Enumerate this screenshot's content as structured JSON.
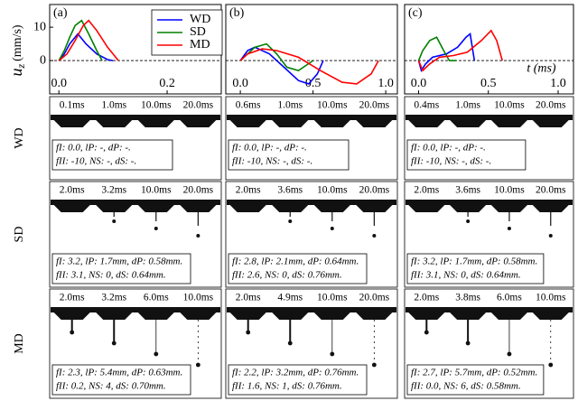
{
  "chart_data": [
    {
      "type": "line",
      "panel_label": "(a)",
      "y_label": "u",
      "y_label_sub": "z",
      "y_label_unit": "(mm/s)",
      "xlim": [
        -0.017,
        0.3
      ],
      "xticks": [
        {
          "value": 0,
          "label": "0.0"
        },
        {
          "value": 0.2,
          "label": "0.2"
        }
      ],
      "ylim": [
        -10,
        16.8
      ],
      "yticks": [
        0,
        10
      ],
      "series": [
        {
          "name": "WD",
          "color": "#0000ff",
          "x": [
            0,
            0.01,
            0.02,
            0.035,
            0.05,
            0.07,
            0.09,
            0.1
          ],
          "values": [
            0,
            2,
            5,
            8,
            5,
            2,
            0.3,
            0
          ]
        },
        {
          "name": "SD",
          "color": "#008000",
          "x": [
            0,
            0.01,
            0.02,
            0.03,
            0.042,
            0.055,
            0.07,
            0.08
          ],
          "values": [
            0,
            3,
            7,
            10.5,
            12,
            8,
            3,
            0
          ]
        },
        {
          "name": "MD",
          "color": "#ff0000",
          "x": [
            0,
            0.015,
            0.03,
            0.045,
            0.055,
            0.07,
            0.09,
            0.11
          ],
          "values": [
            0,
            2,
            6,
            10.5,
            12,
            9,
            4,
            0
          ]
        }
      ]
    },
    {
      "type": "line",
      "panel_label": "(b)",
      "xlim": [
        -0.1,
        1.08
      ],
      "xticks": [
        {
          "value": 0,
          "label": "0.0"
        },
        0.5,
        {
          "value": 1,
          "label": "1.0"
        }
      ],
      "ylim": [
        -10,
        16.8
      ],
      "series": [
        {
          "name": "WD",
          "color": "#0000ff",
          "x": [
            0,
            0.05,
            0.1,
            0.2,
            0.3,
            0.4,
            0.47,
            0.53,
            0.57
          ],
          "values": [
            0,
            3,
            4,
            2,
            -2,
            -6,
            -7,
            -4,
            0
          ]
        },
        {
          "name": "SD",
          "color": "#008000",
          "x": [
            0,
            0.05,
            0.1,
            0.18,
            0.25,
            0.32,
            0.4,
            0.5
          ],
          "values": [
            0,
            2,
            4,
            5,
            2,
            -2,
            -3,
            0
          ]
        },
        {
          "name": "MD",
          "color": "#ff0000",
          "x": [
            0,
            0.05,
            0.15,
            0.25,
            0.4,
            0.55,
            0.7,
            0.8,
            0.9,
            0.95
          ],
          "values": [
            0,
            2,
            3.5,
            3,
            1,
            -3,
            -6.5,
            -7,
            -4,
            0
          ]
        }
      ]
    },
    {
      "type": "line",
      "panel_label": "(c)",
      "x_label": "t (ms)",
      "xlim": [
        -0.1,
        1.11
      ],
      "xticks": [
        {
          "value": 0,
          "label": "0.0"
        },
        0.5,
        {
          "value": 1,
          "label": "1.0"
        }
      ],
      "ylim": [
        -10,
        16.8
      ],
      "series": [
        {
          "name": "WD",
          "color": "#0000ff",
          "x": [
            0,
            0.02,
            0.05,
            0.1,
            0.2,
            0.28,
            0.34,
            0.37,
            0.4
          ],
          "values": [
            0,
            -3,
            -1,
            1,
            2,
            4,
            7,
            8,
            0
          ]
        },
        {
          "name": "SD",
          "color": "#008000",
          "x": [
            0,
            0.03,
            0.08,
            0.13,
            0.18,
            0.22,
            0.27
          ],
          "values": [
            0,
            3,
            6,
            7,
            3,
            0,
            0
          ]
        },
        {
          "name": "MD",
          "color": "#ff0000",
          "x": [
            0,
            0.03,
            0.08,
            0.15,
            0.25,
            0.35,
            0.45,
            0.52,
            0.56,
            0.6
          ],
          "values": [
            0,
            -3,
            -1,
            1,
            1.5,
            2.5,
            6,
            9,
            6,
            0
          ]
        }
      ]
    }
  ],
  "image_rows": [
    {
      "label": "WD",
      "panels": [
        {
          "times": [
            "0.1ms",
            "1.0ms",
            "10.0ms",
            "20.0ms"
          ],
          "info": [
            "fI: 0.0, lP: -, dP: -.",
            "fII: -10, NS: -, dS: -."
          ]
        },
        {
          "times": [
            "0.6ms",
            "1.0ms",
            "10.0ms",
            "20.0ms"
          ],
          "info": [
            "fI: 0.0, lP: -, dP: -.",
            "fII: -10, NS: -, dS: -."
          ]
        },
        {
          "times": [
            "0.4ms",
            "1.0ms",
            "10.0ms",
            "20.0ms"
          ],
          "info": [
            "fI: 0.0, lP: -, dP: -.",
            "fII: -10, NS: -, dS: -."
          ]
        }
      ]
    },
    {
      "label": "SD",
      "panels": [
        {
          "times": [
            "2.0ms",
            "3.2ms",
            "10.0ms",
            "20.0ms"
          ],
          "info": [
            "fI: 3.2, lP: 1.7mm, dP: 0.58mm.",
            "fII: 3.1, NS: 0, dS: 0.64mm."
          ]
        },
        {
          "times": [
            "2.0ms",
            "3.6ms",
            "10.0ms",
            "20.0ms"
          ],
          "info": [
            "fI: 2.8, lP: 2.1mm, dP: 0.64mm.",
            "fII: 2.6, NS: 0, dS: 0.76mm."
          ]
        },
        {
          "times": [
            "2.0ms",
            "3.6ms",
            "10.0ms",
            "20.0ms"
          ],
          "info": [
            "fI: 3.2, lP: 1.7mm, dP: 0.58mm.",
            "fII: 3.1, NS: 0, dS: 0.64mm."
          ]
        }
      ]
    },
    {
      "label": "MD",
      "panels": [
        {
          "times": [
            "2.0ms",
            "3.2ms",
            "6.0ms",
            "10.0ms"
          ],
          "info": [
            "fI: 2.3, lP: 5.4mm, dP: 0.63mm.",
            "fII: 0.2, NS: 4, dS: 0.70mm."
          ]
        },
        {
          "times": [
            "2.0ms",
            "4.9ms",
            "10.0ms",
            "20.0ms"
          ],
          "info": [
            "fI: 2.2, lP: 3.2mm, dP: 0.76mm.",
            "fII: 1.6, NS: 1, dS: 0.76mm."
          ]
        },
        {
          "times": [
            "2.0ms",
            "3.8ms",
            "6.0ms",
            "10.0ms"
          ],
          "info": [
            "fI: 2.7, lP: 5.7mm, dP: 0.52mm.",
            "fII: 0.0, NS: 6, dS: 0.58mm."
          ]
        }
      ]
    }
  ]
}
